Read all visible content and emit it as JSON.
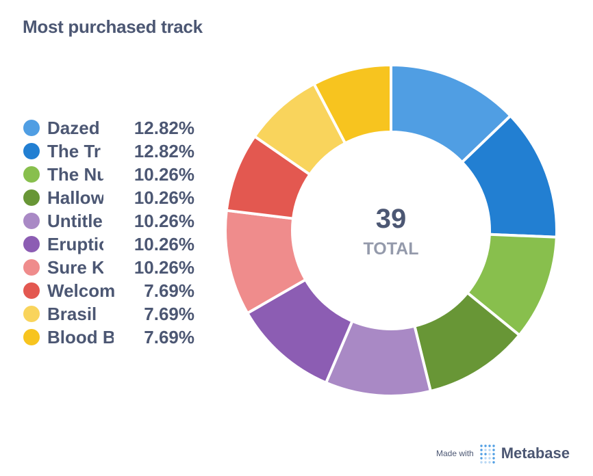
{
  "title": "Most purchased track",
  "chart_data": {
    "type": "pie",
    "title": "Most purchased track",
    "total_value": "39",
    "total_label": "TOTAL",
    "legend_position": "left",
    "slices": [
      {
        "name": "Dazed",
        "label": "Dazed",
        "percent": "12.82%",
        "value": 12.82,
        "color": "#509ee3"
      },
      {
        "name": "The Tr",
        "label": "The Tr",
        "percent": "12.82%",
        "value": 12.82,
        "color": "#227fd2"
      },
      {
        "name": "The Nu",
        "label": "The Nu",
        "percent": "10.26%",
        "value": 10.26,
        "color": "#88bf4d"
      },
      {
        "name": "Hallow",
        "label": "Hallow",
        "percent": "10.26%",
        "value": 10.26,
        "color": "#689636"
      },
      {
        "name": "Untitle",
        "label": "Untitle",
        "percent": "10.26%",
        "value": 10.26,
        "color": "#a989c5"
      },
      {
        "name": "Eruptio",
        "label": "Eruptio",
        "percent": "10.26%",
        "value": 10.26,
        "color": "#8c5db3"
      },
      {
        "name": "Sure K",
        "label": "Sure K",
        "percent": "10.26%",
        "value": 10.26,
        "color": "#ef8c8c"
      },
      {
        "name": "Welcom",
        "label": "Welcom",
        "percent": "7.69%",
        "value": 7.69,
        "color": "#e35850"
      },
      {
        "name": "Brasil",
        "label": "Brasil",
        "percent": "7.69%",
        "value": 7.69,
        "color": "#f9d45c"
      },
      {
        "name": "Blood B",
        "label": "Blood B",
        "percent": "7.69%",
        "value": 7.69,
        "color": "#f7c41f"
      }
    ]
  },
  "footer": {
    "made_with": "Made with",
    "brand": "Metabase",
    "brand_icon": "metabase-logo-icon"
  }
}
